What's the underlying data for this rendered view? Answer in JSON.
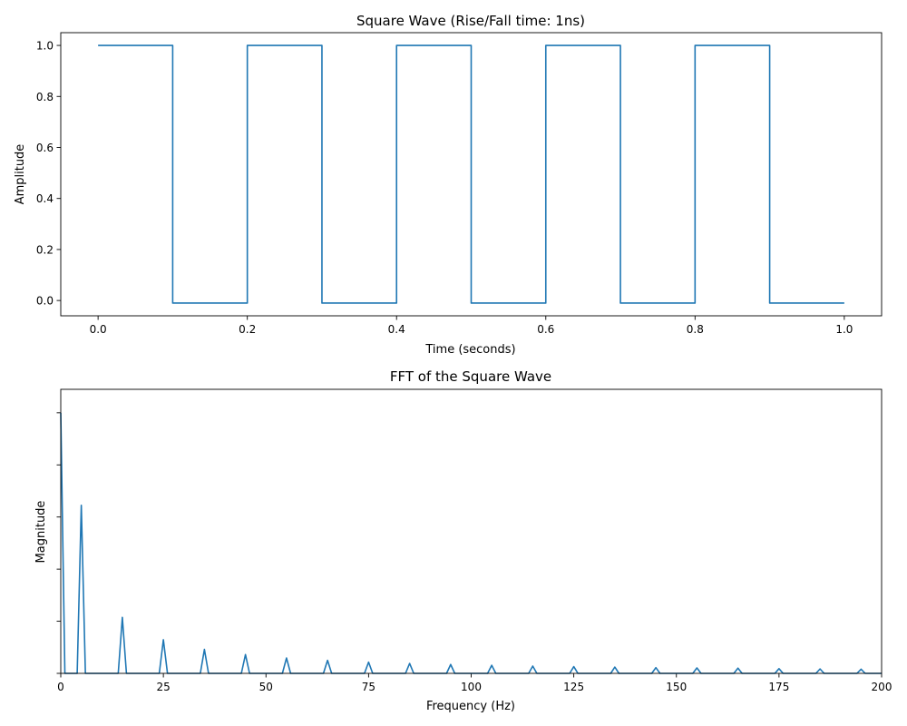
{
  "chart_data": [
    {
      "type": "line",
      "title": "Square Wave (Rise/Fall time: 1ns)",
      "xlabel": "Time (seconds)",
      "ylabel": "Amplitude",
      "xlim": [
        -0.05,
        1.05
      ],
      "ylim": [
        -0.06,
        1.05
      ],
      "xticks": [
        0.0,
        0.2,
        0.4,
        0.6,
        0.8,
        1.0
      ],
      "xtick_labels": [
        "0.0",
        "0.2",
        "0.4",
        "0.6",
        "0.8",
        "1.0"
      ],
      "yticks": [
        0.0,
        0.2,
        0.4,
        0.6,
        0.8,
        1.0
      ],
      "ytick_labels": [
        "0.0",
        "0.2",
        "0.4",
        "0.6",
        "0.8",
        "1.0"
      ],
      "grid": false,
      "series": [
        {
          "color": "#1f77b4",
          "x": [
            0.0,
            0.1,
            0.1,
            0.2,
            0.2,
            0.3,
            0.3,
            0.4,
            0.4,
            0.5,
            0.5,
            0.6,
            0.6,
            0.7,
            0.7,
            0.8,
            0.8,
            0.9,
            0.9,
            1.0
          ],
          "y": [
            1.0,
            1.0,
            -0.01,
            -0.01,
            1.0,
            1.0,
            -0.01,
            -0.01,
            1.0,
            1.0,
            -0.01,
            -0.01,
            1.0,
            1.0,
            -0.01,
            -0.01,
            1.0,
            1.0,
            -0.01,
            -0.01
          ]
        }
      ]
    },
    {
      "type": "line",
      "title": "FFT of the Square Wave",
      "xlabel": "Frequency (Hz)",
      "ylabel": "Magnitude",
      "xlim": [
        0,
        200
      ],
      "ylim": [
        0,
        1.09
      ],
      "xticks": [
        0,
        25,
        50,
        75,
        100,
        125,
        150,
        175,
        200
      ],
      "xtick_labels": [
        "0",
        "25",
        "50",
        "75",
        "100",
        "125",
        "150",
        "175",
        "200"
      ],
      "yticks": [
        0.0,
        0.2,
        0.4,
        0.6,
        0.8,
        1.0
      ],
      "ytick_labels": [
        "",
        "",
        "",
        "",
        "",
        ""
      ],
      "grid": false,
      "series": [
        {
          "color": "#1f77b4",
          "x": [
            0,
            1,
            4,
            5,
            6,
            14,
            15,
            16,
            24,
            25,
            26,
            34,
            35,
            36,
            44,
            45,
            46,
            54,
            55,
            56,
            64,
            65,
            66,
            74,
            75,
            76,
            84,
            85,
            86,
            94,
            95,
            96,
            104,
            105,
            106,
            114,
            115,
            116,
            124,
            125,
            126,
            134,
            135,
            136,
            144,
            145,
            146,
            154,
            155,
            156,
            164,
            165,
            166,
            174,
            175,
            176,
            184,
            185,
            186,
            194,
            195,
            196,
            200
          ],
          "y": [
            1.0,
            0,
            0,
            0.645,
            0,
            0,
            0.215,
            0,
            0,
            0.129,
            0,
            0,
            0.092,
            0,
            0,
            0.072,
            0,
            0,
            0.059,
            0,
            0,
            0.05,
            0,
            0,
            0.043,
            0,
            0,
            0.038,
            0,
            0,
            0.034,
            0,
            0,
            0.031,
            0,
            0,
            0.028,
            0,
            0,
            0.026,
            0,
            0,
            0.024,
            0,
            0,
            0.022,
            0,
            0,
            0.021,
            0,
            0,
            0.02,
            0,
            0,
            0.018,
            0,
            0,
            0.017,
            0,
            0,
            0.016,
            0,
            0
          ]
        }
      ]
    }
  ]
}
